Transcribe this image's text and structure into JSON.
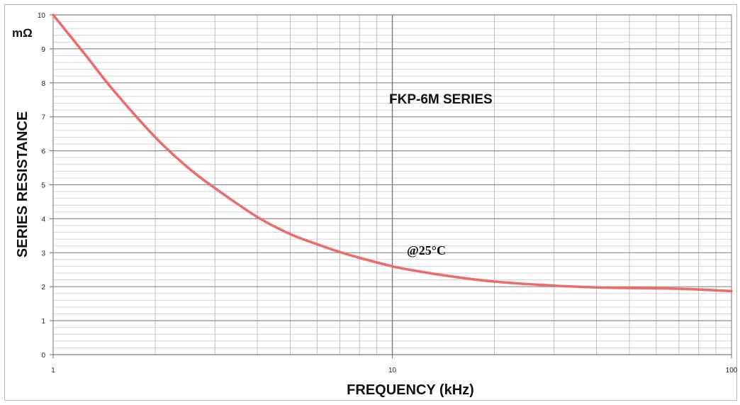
{
  "chart_data": {
    "type": "line",
    "title": "FKP-6M SERIES",
    "annotation": "@25°C",
    "unit_label": "mΩ",
    "xlabel": "FREQUENCY (kHz)",
    "ylabel": "SERIES RESISTANCE",
    "x_scale": "log",
    "xlim": [
      1,
      100
    ],
    "ylim": [
      0,
      10
    ],
    "x_ticks": [
      {
        "value": 1,
        "label": "1"
      },
      {
        "value": 10,
        "label": "10"
      },
      {
        "value": 100,
        "label": "100"
      }
    ],
    "y_ticks": [
      {
        "value": 0,
        "label": "0"
      },
      {
        "value": 1,
        "label": "1"
      },
      {
        "value": 2,
        "label": "2"
      },
      {
        "value": 3,
        "label": "3"
      },
      {
        "value": 4,
        "label": "4"
      },
      {
        "value": 5,
        "label": "5"
      },
      {
        "value": 6,
        "label": "6"
      },
      {
        "value": 7,
        "label": "7"
      },
      {
        "value": 8,
        "label": "8"
      },
      {
        "value": 9,
        "label": "9"
      },
      {
        "value": 10,
        "label": "10"
      }
    ],
    "grid": true,
    "legend": "none",
    "series": [
      {
        "color": "#ee6b6b",
        "x": [
          1,
          1.25,
          1.5,
          2,
          2.5,
          3,
          4,
          5,
          6,
          7,
          8,
          10,
          12,
          15,
          20,
          30,
          40,
          50,
          70,
          100
        ],
        "y": [
          10.0,
          8.8,
          7.8,
          6.4,
          5.5,
          4.9,
          4.05,
          3.55,
          3.25,
          3.02,
          2.85,
          2.6,
          2.45,
          2.3,
          2.15,
          2.03,
          1.98,
          1.96,
          1.94,
          1.87
        ]
      }
    ]
  }
}
